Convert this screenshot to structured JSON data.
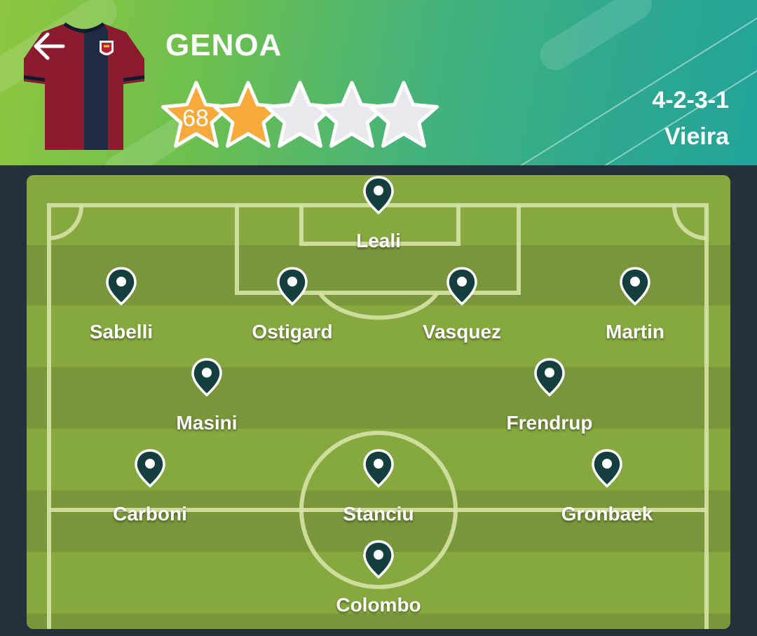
{
  "header": {
    "team_name": "GENOA",
    "rating": "68",
    "stars_total": 5,
    "stars_filled": 2,
    "formation": "4-2-3-1",
    "coach": "Vieira",
    "back_icon": "arrow-left-icon",
    "jersey_icon": "team-jersey-icon"
  },
  "colors": {
    "star_filled": "#f7a93b",
    "star_empty": "#e8e9ec",
    "pitch_light": "#86a93f",
    "pitch_dark": "#79963a",
    "pin": "#153f3f",
    "jersey_red": "#8b1c2e",
    "jersey_navy": "#1f2a44"
  },
  "players": [
    {
      "name": "Leali"
    },
    {
      "name": "Sabelli"
    },
    {
      "name": "Ostigard"
    },
    {
      "name": "Vasquez"
    },
    {
      "name": "Martin"
    },
    {
      "name": "Masini"
    },
    {
      "name": "Frendrup"
    },
    {
      "name": "Carboni"
    },
    {
      "name": "Stanciu"
    },
    {
      "name": "Gronbaek"
    },
    {
      "name": "Colombo"
    }
  ]
}
